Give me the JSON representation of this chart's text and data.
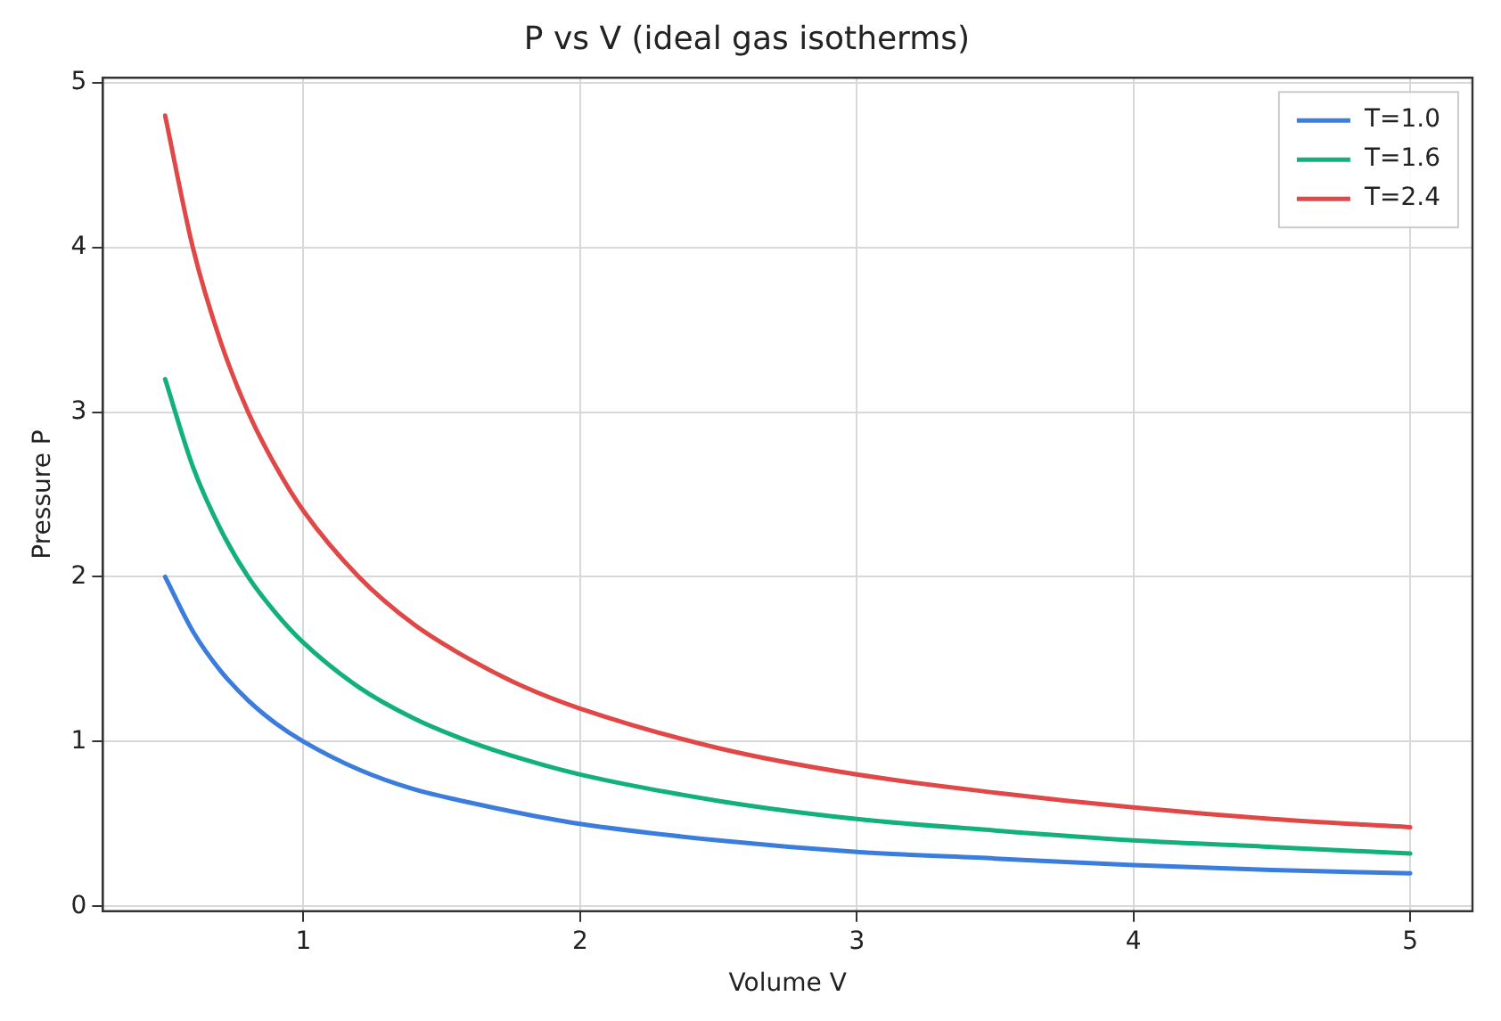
{
  "chart_data": {
    "type": "line",
    "title": "P vs V (ideal gas isotherms)",
    "xlabel": "Volume V",
    "ylabel": "Pressure P",
    "x": [
      0.5,
      0.6,
      0.7,
      0.8,
      0.9,
      1.0,
      1.2,
      1.4,
      1.6,
      1.8,
      2.0,
      2.5,
      3.0,
      3.5,
      4.0,
      4.5,
      5.0
    ],
    "series": [
      {
        "name": "T=1.0",
        "color": "#3b7ddd",
        "values": [
          2.0,
          1.67,
          1.43,
          1.25,
          1.11,
          1.0,
          0.83,
          0.71,
          0.63,
          0.56,
          0.5,
          0.4,
          0.33,
          0.29,
          0.25,
          0.22,
          0.2
        ]
      },
      {
        "name": "T=1.6",
        "color": "#12b07a",
        "values": [
          3.2,
          2.67,
          2.29,
          2.0,
          1.78,
          1.6,
          1.33,
          1.14,
          1.0,
          0.89,
          0.8,
          0.64,
          0.53,
          0.46,
          0.4,
          0.36,
          0.32
        ]
      },
      {
        "name": "T=2.4",
        "color": "#e04848",
        "values": [
          4.8,
          4.0,
          3.43,
          3.0,
          2.67,
          2.4,
          2.0,
          1.71,
          1.5,
          1.33,
          1.2,
          0.96,
          0.8,
          0.69,
          0.6,
          0.53,
          0.48
        ]
      }
    ],
    "xlim": [
      0.275,
      5.225
    ],
    "xticks": [
      1,
      2,
      3,
      4,
      5
    ],
    "ylim": [
      -0.03,
      5.03
    ],
    "yticks": [
      0,
      1,
      2,
      3,
      4,
      5
    ],
    "grid": true,
    "legend": "top right",
    "marker": "none",
    "line_style": "solid"
  }
}
